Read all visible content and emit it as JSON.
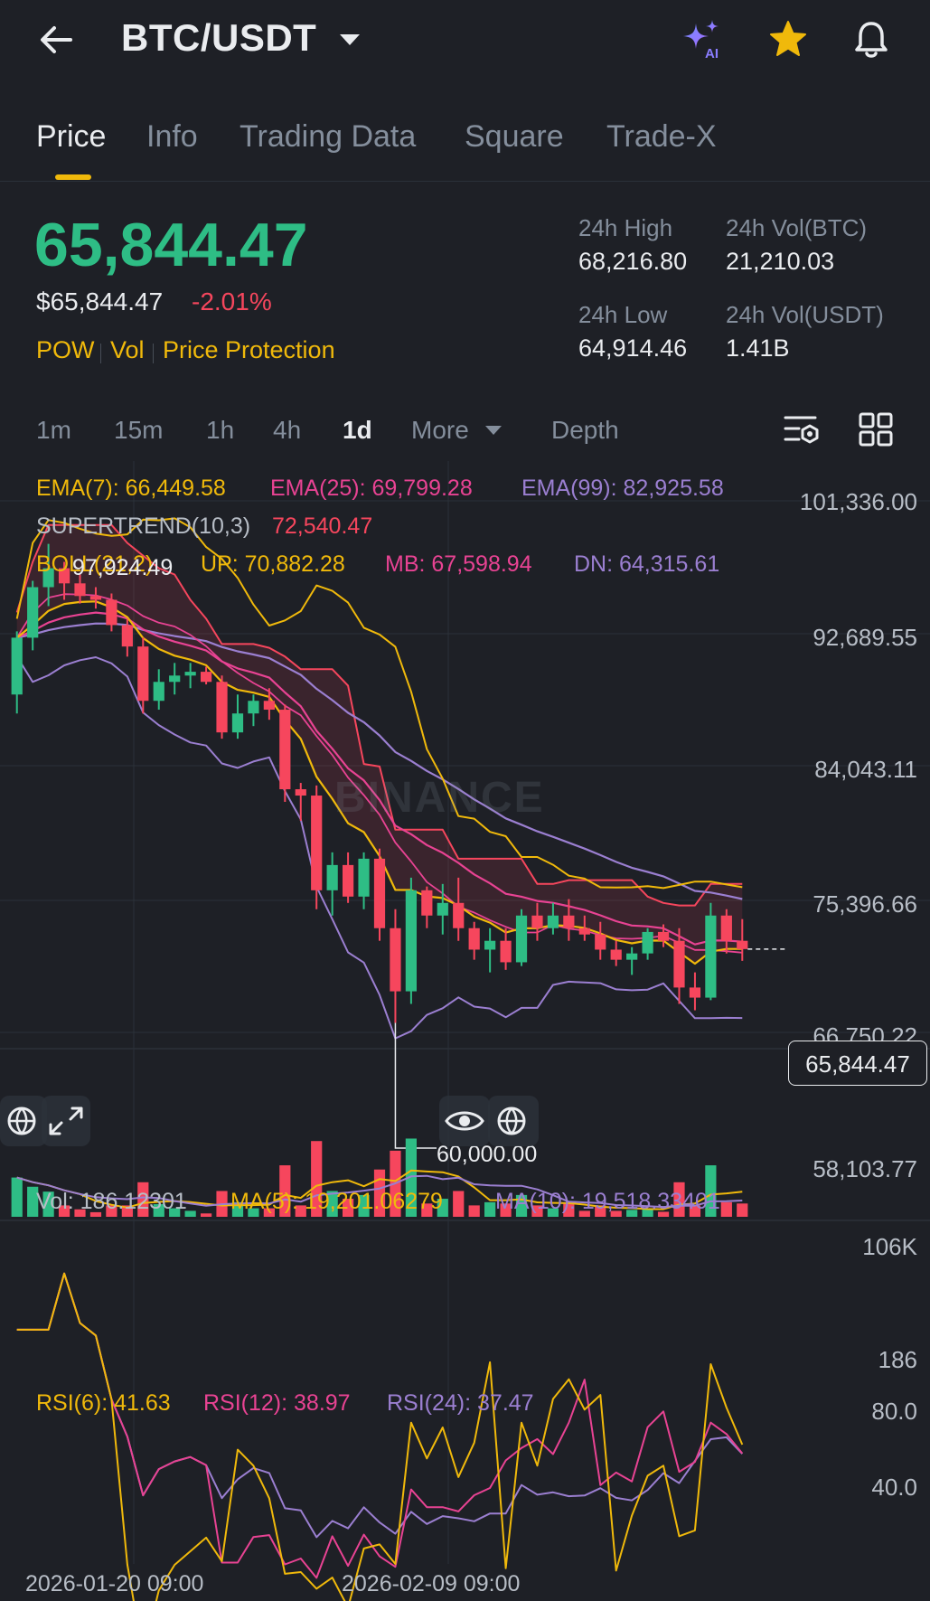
{
  "header": {
    "pair": "BTC/USDT",
    "ai_badge": "AI"
  },
  "tabs": [
    {
      "label": "Price",
      "active": true
    },
    {
      "label": "Info",
      "active": false
    },
    {
      "label": "Trading Data",
      "active": false
    },
    {
      "label": "Square",
      "active": false
    },
    {
      "label": "Trade-X",
      "active": false
    }
  ],
  "price": {
    "last": "65,844.47",
    "usd": "$65,844.47",
    "change": "-2.01%",
    "tags": [
      "POW",
      "Vol",
      "Price Protection"
    ]
  },
  "stats": {
    "high_label": "24h High",
    "high": "68,216.80",
    "low_label": "24h Low",
    "low": "64,914.46",
    "vol_btc_label": "24h Vol(BTC)",
    "vol_btc": "21,210.03",
    "vol_usdt_label": "24h Vol(USDT)",
    "vol_usdt": "1.41B"
  },
  "intervals": [
    "1m",
    "15m",
    "1h",
    "4h",
    "1d",
    "More",
    "Depth"
  ],
  "active_interval": "1d",
  "indicators": {
    "ema7": "EMA(7): 66,449.58",
    "ema25": "EMA(25): 69,799.28",
    "ema99": "EMA(99): 82,925.58",
    "supertrend_label": "SUPERTREND(10,3)",
    "supertrend_value": "72,540.47",
    "boll_label": "BOLL(21,2)",
    "boll_up": "UP: 70,882.28",
    "boll_mb": "MB: 67,598.94",
    "boll_dn": "DN: 64,315.61",
    "vol": "Vol: 186.12301",
    "ma5": "MA(5): 19,201.06279",
    "ma10": "MA(10): 19,518.33401",
    "rsi6": "RSI(6): 41.63",
    "rsi12": "RSI(12): 38.97",
    "rsi24": "RSI(24): 37.47"
  },
  "price_axis": [
    "101,336.00",
    "92,689.55",
    "84,043.11",
    "75,396.66",
    "66,750.22",
    "58,103.77"
  ],
  "current_price_label": "65,844.47",
  "high_marker": "97,924.49",
  "low_marker": "60,000.00",
  "volume_axis": [
    "106K",
    "186"
  ],
  "rsi_axis": [
    "80.0",
    "40.0"
  ],
  "time_axis": [
    "2026-01-20 09:00",
    "2026-02-09 09:00"
  ],
  "watermark": "BINANCE",
  "colors": {
    "up": "#2ebd85",
    "down": "#f6465d",
    "accent": "#f0b90b",
    "ema25": "#e84393",
    "ema99": "#9b7fd1"
  },
  "chart_data": {
    "type": "candlestick",
    "interval": "1d",
    "ohlc": [
      [
        86000,
        91000,
        84500,
        90500
      ],
      [
        90500,
        95000,
        89500,
        94500
      ],
      [
        94500,
        97924.49,
        93000,
        96000
      ],
      [
        96000,
        96500,
        93500,
        94800
      ],
      [
        94800,
        95500,
        93200,
        93800
      ],
      [
        93800,
        94500,
        92800,
        93500
      ],
      [
        93500,
        94000,
        91000,
        91500
      ],
      [
        91500,
        92000,
        89000,
        89800
      ],
      [
        89800,
        90500,
        84500,
        85500
      ],
      [
        85500,
        88000,
        84800,
        87000
      ],
      [
        87000,
        88500,
        86000,
        87500
      ],
      [
        87500,
        88500,
        86500,
        87800
      ],
      [
        87800,
        88200,
        86800,
        87000
      ],
      [
        87000,
        87500,
        82500,
        83000
      ],
      [
        83000,
        86000,
        82500,
        84500
      ],
      [
        84500,
        86000,
        83500,
        85500
      ],
      [
        85500,
        86500,
        84000,
        84800
      ],
      [
        84800,
        85200,
        77500,
        78500
      ],
      [
        78500,
        79000,
        76000,
        78000
      ],
      [
        78000,
        78800,
        69000,
        70500
      ],
      [
        70500,
        73500,
        68500,
        72500
      ],
      [
        72500,
        73500,
        69500,
        70000
      ],
      [
        70000,
        73500,
        69000,
        73000
      ],
      [
        73000,
        73800,
        66500,
        67500
      ],
      [
        67500,
        69000,
        60000,
        62500
      ],
      [
        62500,
        71500,
        61500,
        70500
      ],
      [
        70500,
        70800,
        67500,
        68500
      ],
      [
        68500,
        71000,
        67000,
        69500
      ],
      [
        69500,
        71500,
        66500,
        67500
      ],
      [
        67500,
        68000,
        65000,
        65800
      ],
      [
        65800,
        67500,
        64000,
        66500
      ],
      [
        66500,
        67500,
        64200,
        64800
      ],
      [
        64800,
        69000,
        64500,
        68500
      ],
      [
        68500,
        69500,
        66500,
        67500
      ],
      [
        67500,
        69500,
        67000,
        68500
      ],
      [
        68500,
        69800,
        66500,
        67500
      ],
      [
        67500,
        68500,
        66500,
        67000
      ],
      [
        67000,
        68000,
        65000,
        65800
      ],
      [
        65800,
        66500,
        64500,
        65000
      ],
      [
        65000,
        66000,
        63800,
        65500
      ],
      [
        65500,
        67500,
        65000,
        67200
      ],
      [
        67200,
        67800,
        66000,
        66500
      ],
      [
        66500,
        67500,
        61500,
        62800
      ],
      [
        62800,
        64000,
        61000,
        62000
      ],
      [
        62000,
        69500,
        61800,
        68500
      ],
      [
        68500,
        69000,
        65500,
        66500
      ],
      [
        66500,
        68216.8,
        64914.46,
        65844.47
      ]
    ],
    "price_range": [
      58103.77,
      101336.0
    ],
    "volume_range": [
      186,
      106000
    ],
    "rsi_range": [
      20,
      90
    ]
  }
}
